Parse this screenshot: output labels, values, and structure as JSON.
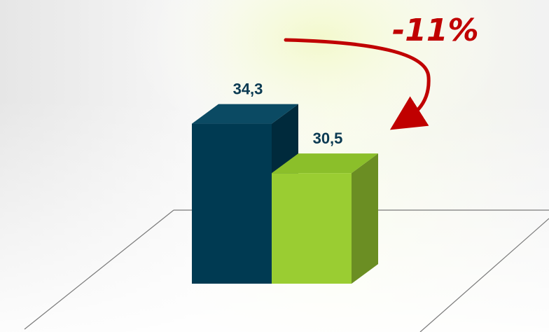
{
  "chart_data": {
    "type": "bar",
    "categories": [
      "",
      ""
    ],
    "values": [
      34.3,
      30.5
    ],
    "value_labels": [
      "34,3",
      "30,5"
    ],
    "bar_colors": [
      "#003a52",
      "#9acd32"
    ],
    "bar_side_colors": [
      "#002a3c",
      "#6b8e23"
    ],
    "bar_top_colors": [
      "#0b4a63",
      "#8bbf2a"
    ],
    "label_color": "#0b3a52",
    "ylim": [
      22,
      36
    ],
    "grid": false,
    "legend": "none",
    "annotation": {
      "text": "-11%",
      "color": "#c00000"
    }
  }
}
